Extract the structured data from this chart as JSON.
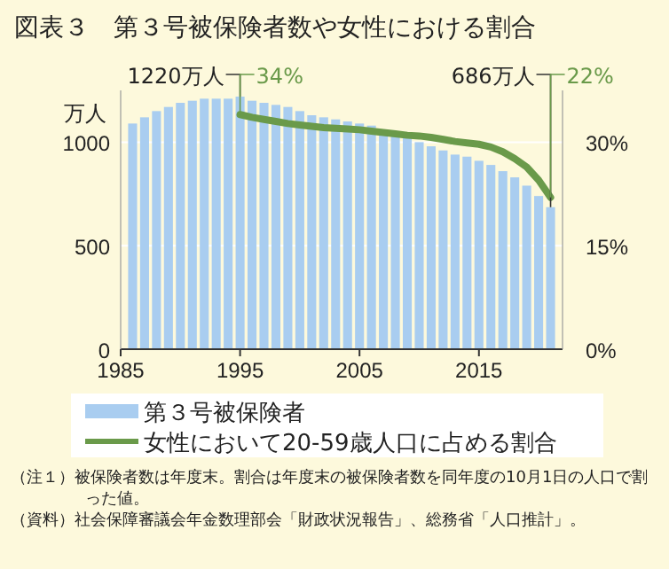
{
  "chart_data": {
    "type": "bar",
    "title": "図表３　第３号被保険者数や女性における割合",
    "ylabel": "万人",
    "x": [
      1986,
      1987,
      1988,
      1989,
      1990,
      1991,
      1992,
      1993,
      1994,
      1995,
      1996,
      1997,
      1998,
      1999,
      2000,
      2001,
      2002,
      2003,
      2004,
      2005,
      2006,
      2007,
      2008,
      2009,
      2010,
      2011,
      2012,
      2013,
      2014,
      2015,
      2016,
      2017,
      2018,
      2019,
      2020,
      2021
    ],
    "series": [
      {
        "name": "第３号被保険者",
        "color": "#a9cdf0",
        "values": [
          1090,
          1120,
          1150,
          1170,
          1190,
          1200,
          1210,
          1210,
          1210,
          1220,
          1200,
          1190,
          1180,
          1170,
          1150,
          1130,
          1120,
          1110,
          1100,
          1090,
          1080,
          1060,
          1040,
          1020,
          1000,
          980,
          960,
          940,
          930,
          910,
          890,
          860,
          830,
          790,
          740,
          686
        ],
        "value_labels": [
          null,
          null,
          null,
          null,
          null,
          null,
          null,
          null,
          null,
          "1220万人",
          null,
          null,
          null,
          null,
          null,
          null,
          null,
          null,
          null,
          null,
          null,
          null,
          null,
          null,
          null,
          null,
          null,
          null,
          null,
          null,
          null,
          null,
          null,
          null,
          null,
          "686万人"
        ]
      },
      {
        "name": "女性において20-59歳人口に占める割合",
        "type": "line",
        "axis": "y2",
        "color": "#6a9a4a",
        "values": [
          null,
          null,
          null,
          null,
          null,
          null,
          null,
          null,
          null,
          34,
          33.6,
          33.3,
          33.0,
          32.7,
          32.5,
          32.3,
          32.1,
          32.0,
          31.9,
          31.8,
          31.6,
          31.4,
          31.2,
          31.0,
          30.9,
          30.7,
          30.4,
          30.1,
          29.9,
          29.7,
          29.3,
          28.6,
          27.6,
          26.4,
          24.5,
          22
        ],
        "value_labels": [
          null,
          null,
          null,
          null,
          null,
          null,
          null,
          null,
          null,
          "34%",
          null,
          null,
          null,
          null,
          null,
          null,
          null,
          null,
          null,
          null,
          null,
          null,
          null,
          null,
          null,
          null,
          null,
          null,
          null,
          null,
          null,
          null,
          null,
          null,
          null,
          "22%"
        ]
      }
    ],
    "xlim": [
      1985,
      2022
    ],
    "xticks": [
      1985,
      1995,
      2005,
      2015
    ],
    "ylim": [
      0,
      1250
    ],
    "yticks": [
      0,
      500,
      1000
    ],
    "y2lim": [
      0,
      37.5
    ],
    "y2ticks": [
      {
        "value": 0,
        "label": "0%"
      },
      {
        "value": 15,
        "label": "15%"
      },
      {
        "value": 30,
        "label": "30%"
      }
    ],
    "grid": "y",
    "legend": "bottom",
    "annotations": [
      "（注１）被保険者数は年度末。割合は年度末の被保険者数を同年度の10月1日の人口で割った値。",
      "（資料）社会保障審議会年金数理部会「財政状況報告」、総務省「人口推計」。"
    ]
  }
}
